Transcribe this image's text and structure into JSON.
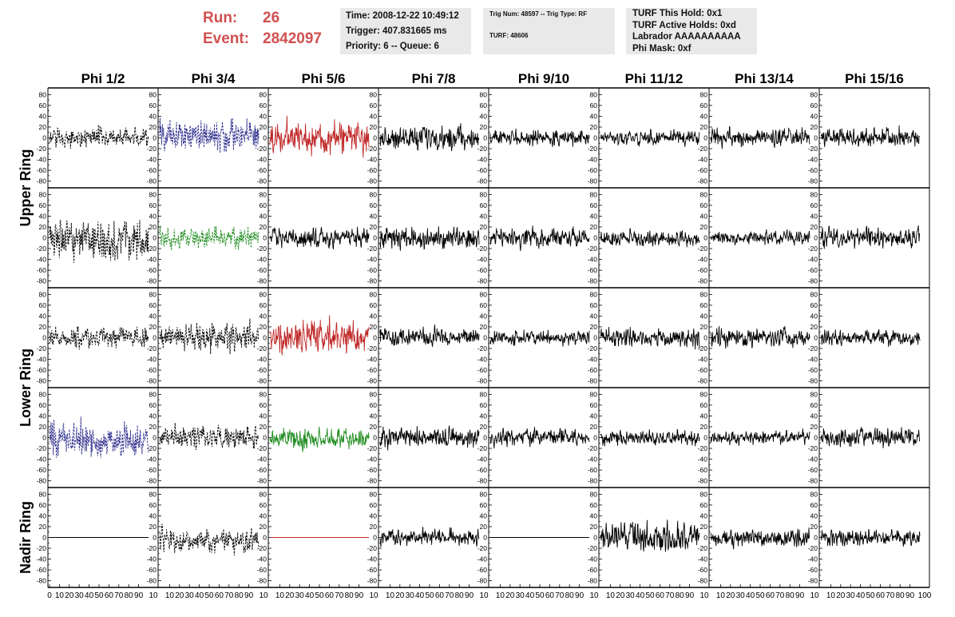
{
  "header": {
    "run_label": "Run:",
    "run_value": "26",
    "event_label": "Event:",
    "event_value": "2842097",
    "info_panel_1": [
      "Time: 2008-12-22 10:49:12",
      "Trigger: 407.831665 ms",
      "Priority: 6 -- Queue: 6"
    ],
    "info_panel_2": [
      "Trig Num: 48597 -- Trig Type: RF",
      "TURF: 48606"
    ],
    "info_panel_3": [
      "TURF This Hold: 0x1",
      "TURF Active Holds: 0xd",
      "Labrador AAAAAAAAAA",
      "Phi Mask: 0xf"
    ]
  },
  "colors": {
    "black": "#000000",
    "blue": "#2b2b8c",
    "red": "#c02828",
    "green": "#1e8c1e",
    "title_red": "#d05050",
    "panel_bg": "#e9e9e9"
  },
  "chart_data": {
    "type": "line",
    "grid": false,
    "column_titles": [
      "Phi 1/2",
      "Phi 3/4",
      "Phi 5/6",
      "Phi 7/8",
      "Phi 9/10",
      "Phi 11/12",
      "Phi 13/14",
      "Phi 15/16"
    ],
    "ring_labels": [
      "Upper Ring",
      "Lower Ring",
      "Nadir Ring"
    ],
    "xlim": [
      0,
      100
    ],
    "ylim": [
      -85,
      85
    ],
    "y_ticks": [
      80,
      60,
      40,
      20,
      0,
      -20,
      -40,
      -60,
      -80
    ],
    "x_tick_labels_first": [
      "0",
      "10",
      "20",
      "30",
      "40",
      "50",
      "60",
      "70",
      "80",
      "90"
    ],
    "x_tick_labels": [
      "10",
      "20",
      "30",
      "40",
      "50",
      "60",
      "70",
      "80",
      "90"
    ],
    "x_tick_end": "10",
    "x_tick_last": "100",
    "rows": [
      [
        {
          "color": "black",
          "style": "dashed",
          "amp": 16,
          "offset": 0
        },
        {
          "color": "blue",
          "style": "dashed",
          "amp": 26,
          "offset": 5
        },
        {
          "color": "red",
          "style": "solid",
          "amp": 26,
          "offset": 0
        },
        {
          "color": "black",
          "style": "solid",
          "amp": 18,
          "offset": 0
        },
        {
          "color": "black",
          "style": "solid",
          "amp": 12,
          "offset": 0
        },
        {
          "color": "black",
          "style": "solid",
          "amp": 11,
          "offset": 0
        },
        {
          "color": "black",
          "style": "solid",
          "amp": 14,
          "offset": 0
        },
        {
          "color": "black",
          "style": "solid",
          "amp": 15,
          "offset": 0
        }
      ],
      [
        {
          "color": "black",
          "style": "dashed",
          "amp": 32,
          "offset": -8
        },
        {
          "color": "green",
          "style": "dashed",
          "amp": 16,
          "offset": 0
        },
        {
          "color": "black",
          "style": "solid",
          "amp": 15,
          "offset": 0
        },
        {
          "color": "black",
          "style": "solid",
          "amp": 18,
          "offset": 0
        },
        {
          "color": "black",
          "style": "solid",
          "amp": 15,
          "offset": 0
        },
        {
          "color": "black",
          "style": "solid",
          "amp": 12,
          "offset": 0
        },
        {
          "color": "black",
          "style": "solid",
          "amp": 10,
          "offset": 0
        },
        {
          "color": "black",
          "style": "solid",
          "amp": 15,
          "offset": 0
        }
      ],
      [
        {
          "color": "black",
          "style": "dashed",
          "amp": 16,
          "offset": 0
        },
        {
          "color": "black",
          "style": "dashed",
          "amp": 20,
          "offset": 0
        },
        {
          "color": "red",
          "style": "solid",
          "amp": 25,
          "offset": 0
        },
        {
          "color": "black",
          "style": "solid",
          "amp": 15,
          "offset": 0
        },
        {
          "color": "black",
          "style": "solid",
          "amp": 12,
          "offset": 0
        },
        {
          "color": "black",
          "style": "solid",
          "amp": 14,
          "offset": 0
        },
        {
          "color": "black",
          "style": "solid",
          "amp": 15,
          "offset": 0
        },
        {
          "color": "black",
          "style": "solid",
          "amp": 12,
          "offset": 0
        }
      ],
      [
        {
          "color": "blue",
          "style": "dashed",
          "amp": 27,
          "offset": -5
        },
        {
          "color": "black",
          "style": "dashed",
          "amp": 18,
          "offset": 0
        },
        {
          "color": "green",
          "style": "solid",
          "amp": 16,
          "offset": -3
        },
        {
          "color": "black",
          "style": "solid",
          "amp": 15,
          "offset": 0
        },
        {
          "color": "black",
          "style": "solid",
          "amp": 12,
          "offset": 0
        },
        {
          "color": "black",
          "style": "solid",
          "amp": 12,
          "offset": 0
        },
        {
          "color": "black",
          "style": "solid",
          "amp": 11,
          "offset": 0
        },
        {
          "color": "black",
          "style": "solid",
          "amp": 15,
          "offset": 0
        }
      ],
      [
        {
          "color": "black",
          "style": "flat",
          "amp": 0,
          "offset": 0
        },
        {
          "color": "black",
          "style": "dashed",
          "amp": 18,
          "offset": -5
        },
        {
          "color": "red",
          "style": "flat",
          "amp": 0,
          "offset": 0
        },
        {
          "color": "black",
          "style": "solid",
          "amp": 12,
          "offset": 0
        },
        {
          "color": "black",
          "style": "flat",
          "amp": 0,
          "offset": 0
        },
        {
          "color": "black",
          "style": "solid",
          "amp": 22,
          "offset": 0
        },
        {
          "color": "black",
          "style": "solid",
          "amp": 14,
          "offset": 0
        },
        {
          "color": "black",
          "style": "solid",
          "amp": 12,
          "offset": 0
        }
      ]
    ]
  }
}
